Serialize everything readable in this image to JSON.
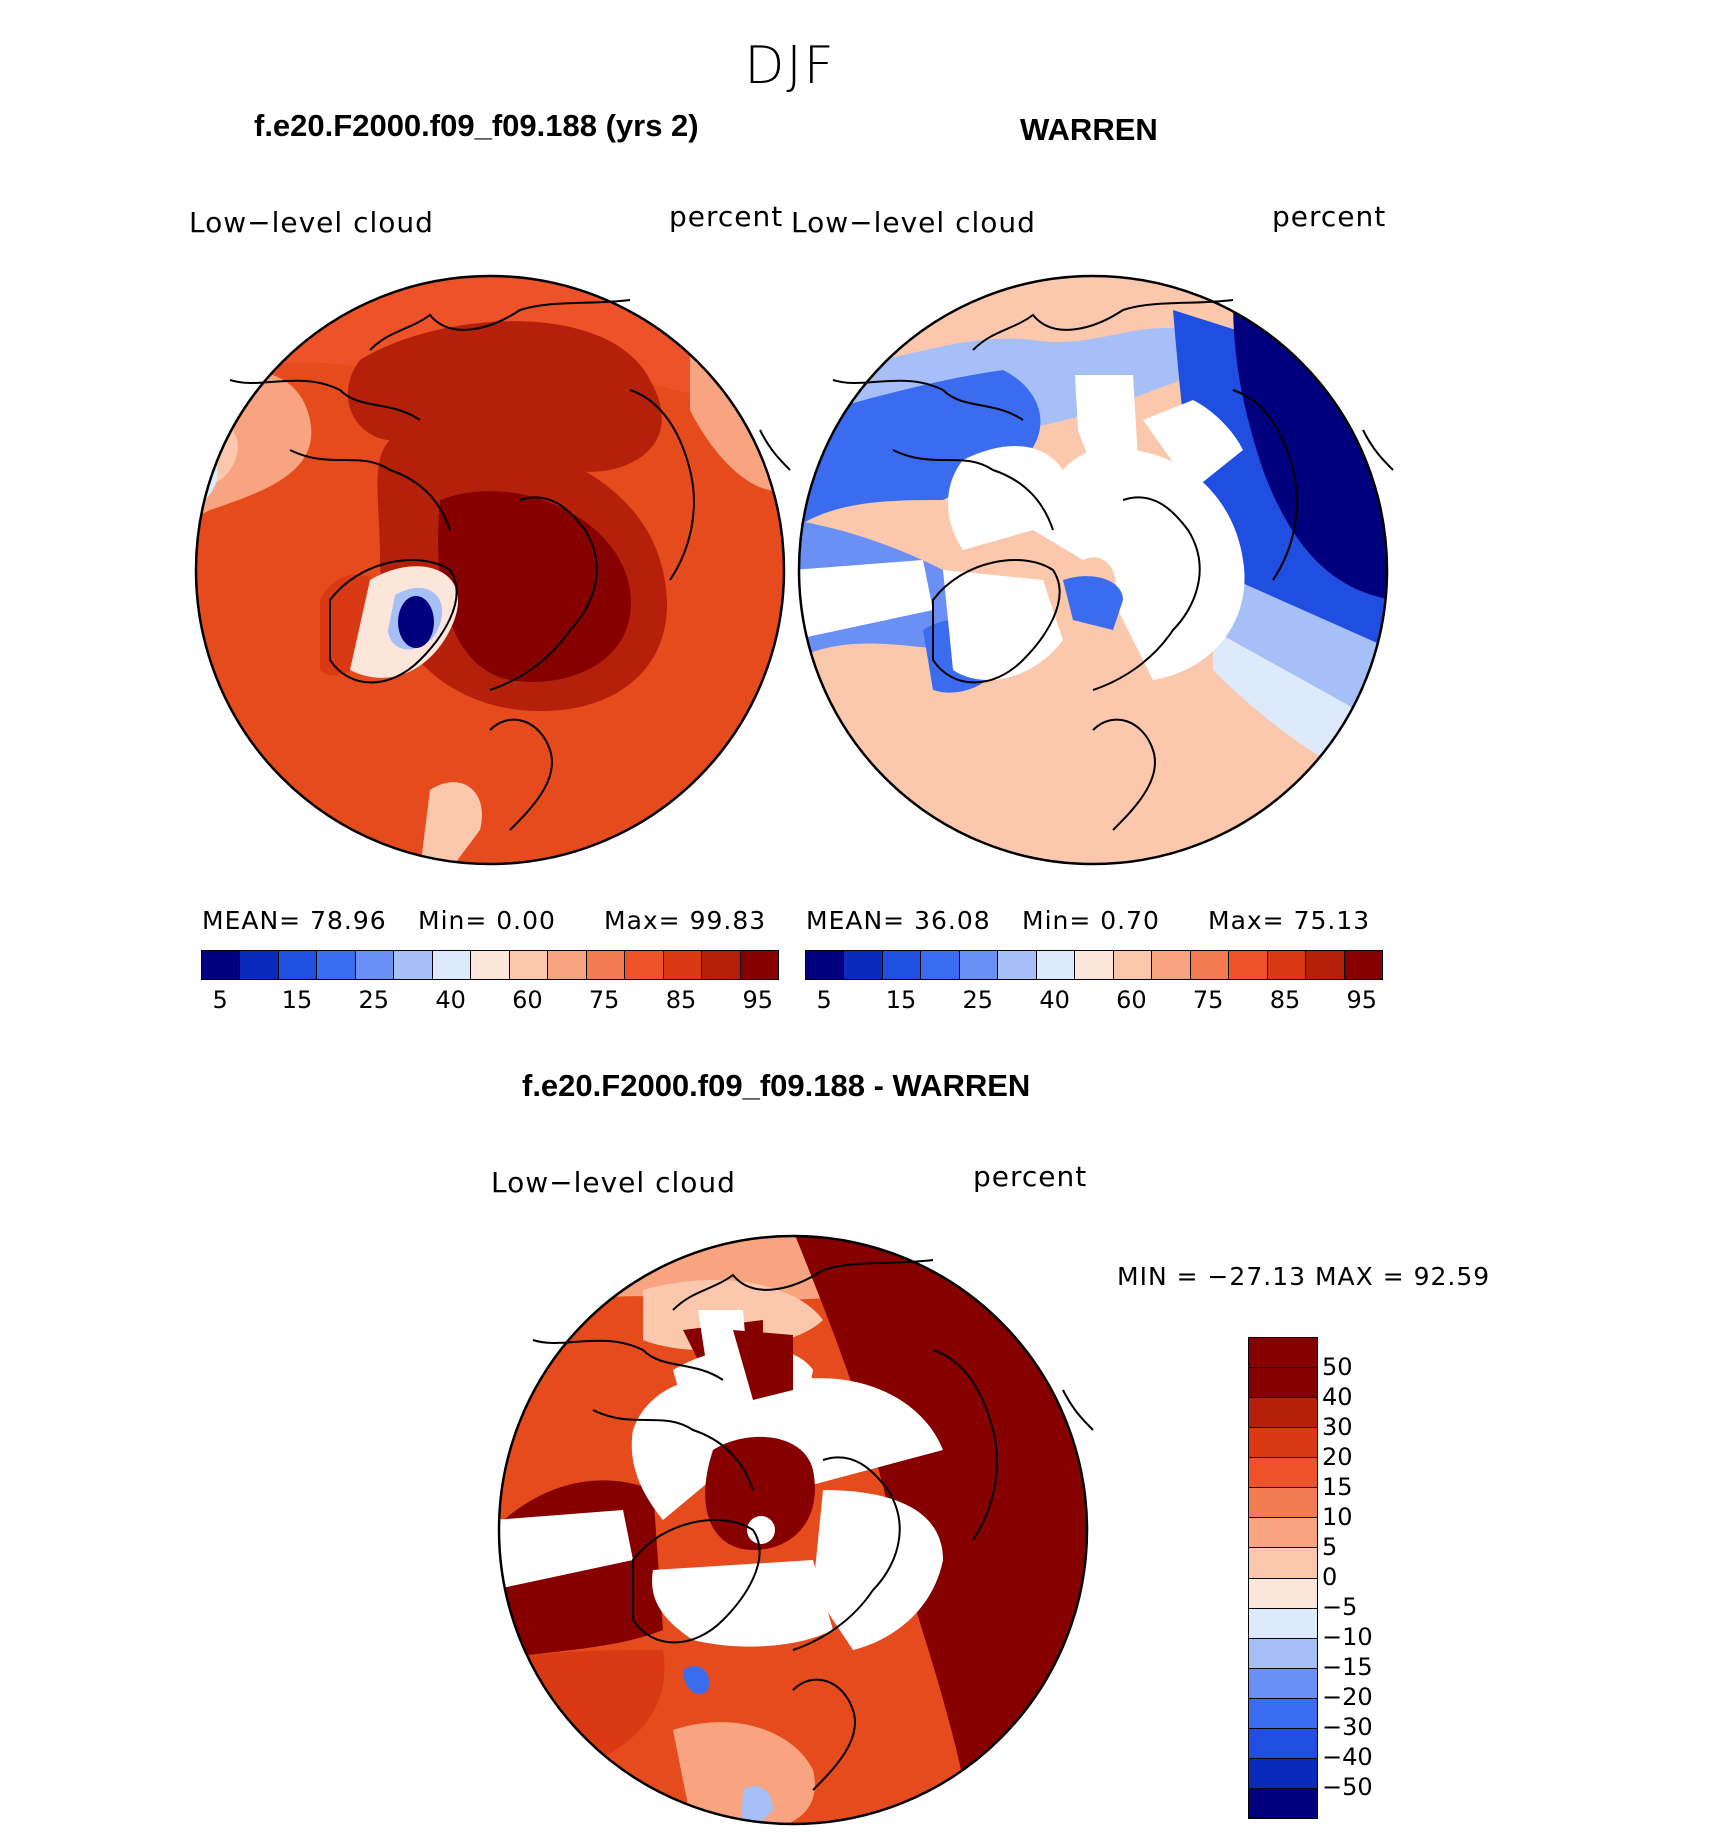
{
  "figure": {
    "season": "DJF",
    "panels": [
      {
        "title": "f.e20.F2000.f09_f09.188 (yrs 2)",
        "left_label": "Low−level cloud",
        "right_label": "percent",
        "stats": {
          "mean": "MEAN=   78.96",
          "min": "Min=    0.00",
          "max": "Max=   99.83"
        }
      },
      {
        "title": "WARREN",
        "left_label": "Low−level cloud",
        "right_label": "percent",
        "stats": {
          "mean": "MEAN=   36.08",
          "min": "Min=    0.70",
          "max": "Max=   75.13"
        }
      },
      {
        "title": "f.e20.F2000.f09_f09.188 - WARREN",
        "left_label": "Low−level cloud",
        "right_label": "percent",
        "stats": {
          "minmax": "MIN = −27.13 MAX =   92.59"
        }
      }
    ],
    "colorbar_abs": {
      "colors": [
        "#00007f",
        "#0a2abb",
        "#1f4ee0",
        "#3b6cf0",
        "#6a8ff5",
        "#a6c0f7",
        "#dceafb",
        "#fce6dc",
        "#fbc8ae",
        "#f8a480",
        "#f47a52",
        "#ee5228",
        "#d93a14",
        "#b4200a",
        "#860000"
      ],
      "tick_labels": [
        "5",
        "15",
        "25",
        "40",
        "60",
        "75",
        "85",
        "95"
      ]
    },
    "colorbar_diff": {
      "colors": [
        "#860000",
        "#b4200a",
        "#d93a14",
        "#ee5228",
        "#f47a52",
        "#f8a480",
        "#fbc8ae",
        "#fce6dc",
        "#dceafb",
        "#a6c0f7",
        "#6a8ff5",
        "#3b6cf0",
        "#1f4ee0",
        "#0a2abb",
        "#00007f"
      ],
      "tick_labels": [
        "50",
        "40",
        "30",
        "20",
        "15",
        "10",
        "5",
        "0",
        "−5",
        "−10",
        "−15",
        "−20",
        "−30",
        "−40",
        "−50"
      ]
    },
    "map_legend": {
      "panel1_colors": {
        "base": "#e64b1e",
        "dark": "#b4200a",
        "deep": "#860000",
        "light": "#f8a480",
        "pale": "#fbc8ae",
        "ice_blue": "#00007f"
      },
      "panel2_colors": {
        "base": "#fbc8ae",
        "blue": "#3b6cf0",
        "deep_blue": "#00007f",
        "mid_blue": "#1f4ee0",
        "light_blue": "#a6c0f7",
        "missing": "#ffffff"
      },
      "panel3_colors": {
        "base": "#e64b1e",
        "deep": "#860000",
        "light": "#f8a480",
        "missing": "#ffffff",
        "blue": "#3b6cf0"
      }
    }
  }
}
